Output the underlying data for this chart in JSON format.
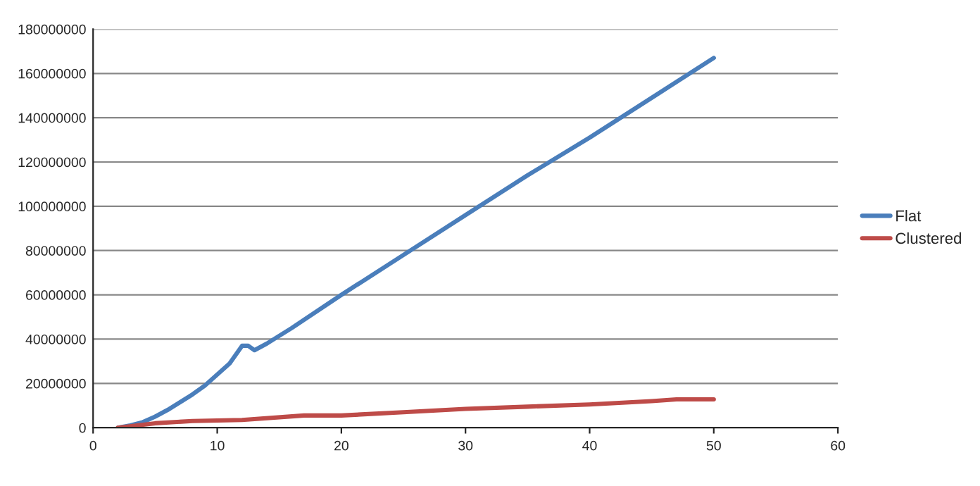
{
  "chart_data": {
    "type": "line",
    "xlim": [
      0,
      60
    ],
    "xticks": [
      0,
      10,
      20,
      30,
      40,
      50,
      60
    ],
    "ylim": [
      0,
      180000000
    ],
    "yticks": [
      0,
      20000000,
      40000000,
      60000000,
      80000000,
      100000000,
      120000000,
      140000000,
      160000000,
      180000000
    ],
    "grid": "y",
    "legend": "right",
    "marker": "none",
    "line_style": "solid",
    "series": [
      {
        "name": "Flat",
        "color": "#4a7ebb",
        "x": [
          2,
          3,
          4,
          5,
          6,
          7,
          8,
          9,
          10,
          11,
          12,
          12.5,
          13,
          14,
          16,
          20,
          25,
          30,
          35,
          40,
          45,
          50
        ],
        "values": [
          0,
          1000000,
          2500000,
          5000000,
          8000000,
          11500000,
          15000000,
          19000000,
          24000000,
          29000000,
          37000000,
          37000000,
          35000000,
          38000000,
          45000000,
          60000000,
          78000000,
          96000000,
          114000000,
          131000000,
          149000000,
          167000000
        ]
      },
      {
        "name": "Clustered",
        "color": "#be4b48",
        "x": [
          2,
          5,
          8,
          12,
          17,
          20,
          25,
          30,
          35,
          40,
          45,
          47,
          50
        ],
        "values": [
          0,
          2000000,
          3000000,
          3500000,
          5500000,
          5500000,
          7000000,
          8500000,
          9500000,
          10500000,
          12000000,
          12800000,
          12800000
        ]
      }
    ]
  }
}
